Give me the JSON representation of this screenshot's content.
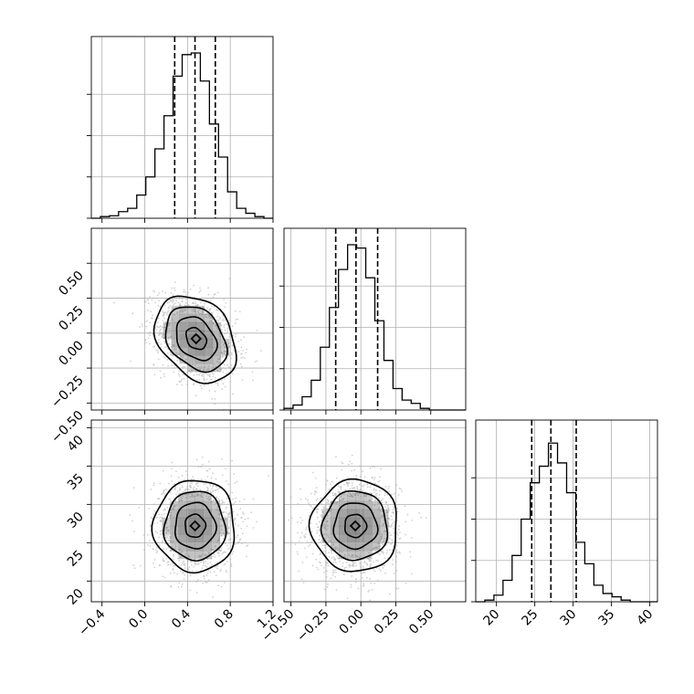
{
  "chart_data": {
    "type": "corner",
    "parameters": [
      {
        "range": [
          -0.5,
          1.2
        ],
        "ticks": [
          -0.4,
          0.0,
          0.4,
          0.8,
          1.2
        ],
        "tick_labels": [
          "−0.4",
          "0.0",
          "0.4",
          "0.8",
          "1.2"
        ],
        "quantiles": [
          0.28,
          0.47,
          0.66
        ]
      },
      {
        "range": [
          -0.55,
          0.75
        ],
        "ticks": [
          -0.5,
          -0.25,
          0.0,
          0.25,
          0.5
        ],
        "tick_labels": [
          "−0.50",
          "−0.25",
          "0.00",
          "0.25",
          "0.50"
        ],
        "quantiles": [
          -0.18,
          -0.035,
          0.12
        ]
      },
      {
        "range": [
          17.3,
          41.0
        ],
        "ticks": [
          20,
          25,
          30,
          35,
          40
        ],
        "tick_labels": [
          "20",
          "25",
          "30",
          "35",
          "40"
        ],
        "quantiles": [
          24.6,
          27.1,
          30.4
        ]
      }
    ],
    "histograms": [
      {
        "param": 0,
        "edges": [
          -0.5,
          -0.415,
          -0.33,
          -0.245,
          -0.16,
          -0.075,
          0.01,
          0.095,
          0.18,
          0.265,
          0.35,
          0.435,
          0.52,
          0.605,
          0.69,
          0.775,
          0.86,
          0.945,
          1.03,
          1.115,
          1.2
        ],
        "counts": [
          0.0,
          0.01,
          0.015,
          0.04,
          0.06,
          0.14,
          0.25,
          0.42,
          0.62,
          0.86,
          0.99,
          1.0,
          0.83,
          0.57,
          0.37,
          0.16,
          0.06,
          0.03,
          0.01,
          0.0
        ]
      },
      {
        "param": 1,
        "edges": [
          -0.55,
          -0.485,
          -0.42,
          -0.355,
          -0.29,
          -0.225,
          -0.16,
          -0.095,
          -0.03,
          0.035,
          0.1,
          0.165,
          0.23,
          0.295,
          0.36,
          0.425,
          0.49,
          0.555,
          0.62,
          0.685,
          0.75
        ],
        "counts": [
          0.01,
          0.03,
          0.08,
          0.18,
          0.38,
          0.62,
          0.85,
          1.0,
          0.98,
          0.8,
          0.54,
          0.3,
          0.13,
          0.06,
          0.04,
          0.01,
          0.0,
          0.0,
          0.0,
          0.0
        ]
      },
      {
        "param": 2,
        "edges": [
          17.3,
          18.485,
          19.67,
          20.855,
          22.04,
          23.225,
          24.41,
          25.595,
          26.78,
          27.965,
          29.15,
          30.335,
          31.52,
          32.705,
          33.89,
          35.075,
          36.26,
          37.445,
          38.63,
          39.815,
          41.0
        ],
        "counts": [
          0.0,
          0.01,
          0.04,
          0.13,
          0.28,
          0.5,
          0.72,
          0.82,
          0.96,
          0.84,
          0.66,
          0.36,
          0.23,
          0.1,
          0.05,
          0.03,
          0.01,
          0.0,
          0.0,
          0.0
        ]
      }
    ],
    "joint": [
      {
        "x_param": 0,
        "y_param": 1,
        "center": [
          0.48,
          -0.04
        ],
        "sigma": [
          0.19,
          0.155
        ],
        "rho": -0.3,
        "contour_levels_sigma": [
          0.5,
          1.0,
          1.5,
          2.0
        ]
      },
      {
        "x_param": 0,
        "y_param": 2,
        "center": [
          0.47,
          27.2
        ],
        "sigma": [
          0.19,
          3.0
        ],
        "rho": 0.0,
        "contour_levels_sigma": [
          0.5,
          1.0,
          1.5,
          2.0
        ]
      },
      {
        "x_param": 1,
        "y_param": 2,
        "center": [
          -0.04,
          27.2
        ],
        "sigma": [
          0.155,
          3.0
        ],
        "rho": 0.0,
        "contour_levels_sigma": [
          0.5,
          1.0,
          1.5,
          2.0
        ]
      }
    ],
    "grid": true,
    "line_color": "#000000",
    "point_color": "#bdbdbd",
    "density_color": "#555555",
    "title": "",
    "xlabel": "",
    "ylabel": ""
  }
}
